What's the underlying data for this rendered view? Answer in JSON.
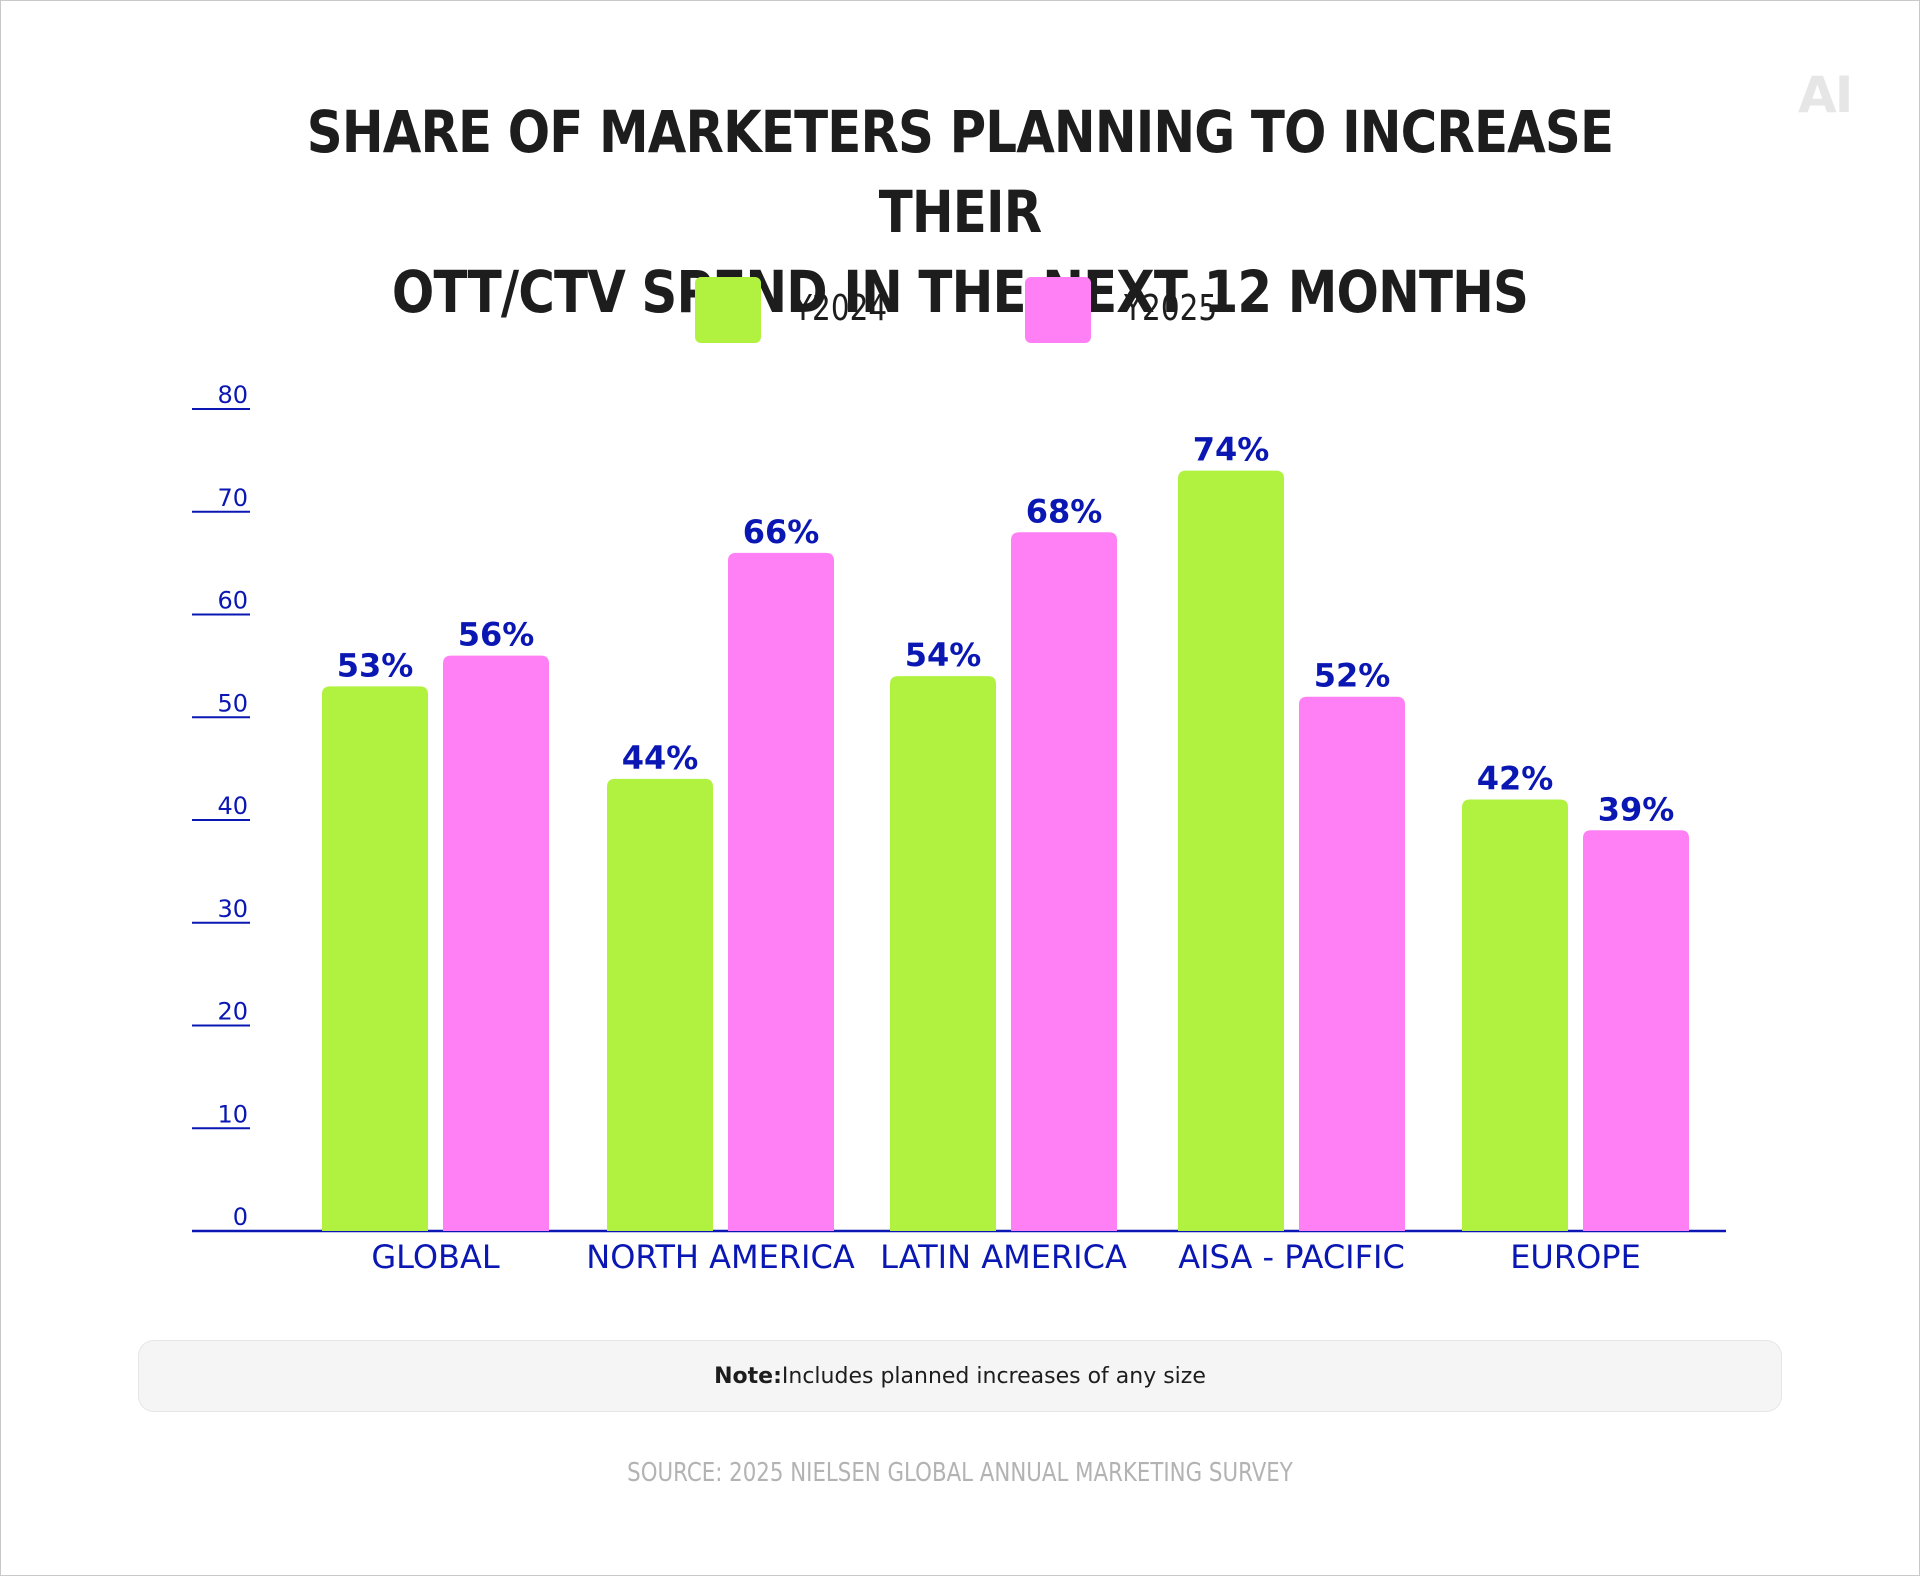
{
  "logo": "AI",
  "chart_data": {
    "type": "bar",
    "title_lines": [
      "SHARE OF MARKETERS PLANNING TO INCREASE THEIR",
      "OTT/CTV SPEND IN THE NEXT 12 MONTHS"
    ],
    "categories": [
      "GLOBAL",
      "NORTH AMERICA",
      "LATIN AMERICA",
      "AISA - PACIFIC",
      "EUROPE"
    ],
    "series": [
      {
        "name": "Y2024",
        "color": "#b0f23f",
        "values": [
          53,
          44,
          54,
          74,
          42
        ]
      },
      {
        "name": "Y2025",
        "color": "#ff80f4",
        "values": [
          56,
          66,
          68,
          52,
          39
        ]
      }
    ],
    "data_labels": [
      [
        "53%",
        "44%",
        "54%",
        "74%",
        "42%"
      ],
      [
        "56%",
        "66%",
        "68%",
        "52%",
        "39%"
      ]
    ],
    "y_ticks": [
      0,
      10,
      20,
      30,
      40,
      50,
      60,
      70,
      80
    ],
    "ylim": [
      0,
      80
    ],
    "legend_position": "top-center",
    "axis_color": "#0a17b3",
    "grid": false
  },
  "note": {
    "label": "Note:",
    "text": "Includes planned increases of any size"
  },
  "source": "SOURCE: 2025 NIELSEN GLOBAL ANNUAL MARKETING SURVEY"
}
